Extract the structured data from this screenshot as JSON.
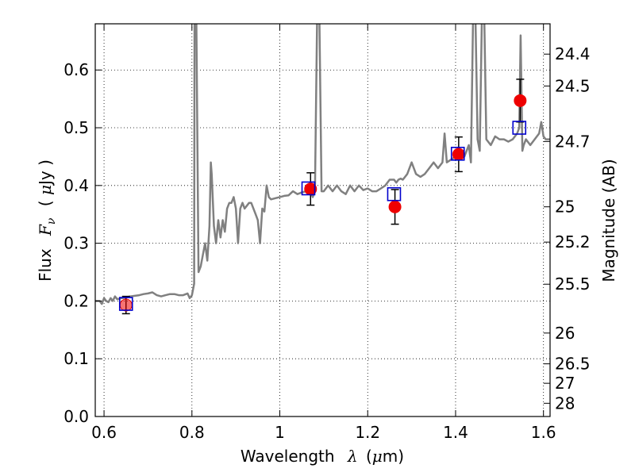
{
  "chart_data": {
    "type": "scatter",
    "xlabel_text": "Wavelength",
    "xlabel_symbol": "λ",
    "xlabel_unit_open": "(",
    "xlabel_unit_mu": "μ",
    "xlabel_unit_rest": "m)",
    "ylabel_text": "Flux",
    "ylabel_symbol": "F",
    "ylabel_subscript": "ν",
    "ylabel_unit_open": "(",
    "ylabel_unit_mu": "μ",
    "ylabel_unit_rest": "Jy )",
    "y2label": "Magnitude (AB)",
    "xlim": [
      0.58,
      1.615
    ],
    "ylim": [
      0.0,
      0.68
    ],
    "grid": true,
    "x_ticks": [
      {
        "value": 0.6,
        "label": "0.6"
      },
      {
        "value": 0.8,
        "label": "0.8"
      },
      {
        "value": 1.0,
        "label": "1"
      },
      {
        "value": 1.2,
        "label": "1.2"
      },
      {
        "value": 1.4,
        "label": "1.4"
      },
      {
        "value": 1.6,
        "label": "1.6"
      }
    ],
    "y_ticks": [
      {
        "value": 0.0,
        "label": "0.0"
      },
      {
        "value": 0.1,
        "label": "0.1"
      },
      {
        "value": 0.2,
        "label": "0.2"
      },
      {
        "value": 0.3,
        "label": "0.3"
      },
      {
        "value": 0.4,
        "label": "0.4"
      },
      {
        "value": 0.5,
        "label": "0.5"
      },
      {
        "value": 0.6,
        "label": "0.6"
      }
    ],
    "y2_ticks": [
      {
        "flux": 0.6275,
        "label": "24.4"
      },
      {
        "flux": 0.5723,
        "label": "24.5"
      },
      {
        "flux": 0.4762,
        "label": "24.7"
      },
      {
        "flux": 0.3631,
        "label": "25"
      },
      {
        "flux": 0.302,
        "label": "25.2"
      },
      {
        "flux": 0.2291,
        "label": "25.5"
      },
      {
        "flux": 0.1445,
        "label": "26"
      },
      {
        "flux": 0.0912,
        "label": "26.5"
      },
      {
        "flux": 0.0575,
        "label": "27"
      },
      {
        "flux": 0.0229,
        "label": "28"
      }
    ],
    "series": [
      {
        "kind": "line",
        "color": "#808080",
        "x": [
          0.58,
          0.59,
          0.595,
          0.6,
          0.605,
          0.61,
          0.615,
          0.62,
          0.625,
          0.63,
          0.64,
          0.65,
          0.66,
          0.67,
          0.68,
          0.69,
          0.7,
          0.71,
          0.72,
          0.73,
          0.74,
          0.75,
          0.76,
          0.77,
          0.78,
          0.79,
          0.795,
          0.8,
          0.805,
          0.806,
          0.808,
          0.81,
          0.815,
          0.82,
          0.825,
          0.83,
          0.835,
          0.84,
          0.843,
          0.845,
          0.85,
          0.855,
          0.86,
          0.865,
          0.87,
          0.875,
          0.88,
          0.885,
          0.89,
          0.895,
          0.9,
          0.905,
          0.91,
          0.915,
          0.92,
          0.925,
          0.93,
          0.935,
          0.94,
          0.945,
          0.95,
          0.955,
          0.96,
          0.965,
          0.97,
          0.975,
          0.98,
          0.99,
          1.0,
          1.01,
          1.02,
          1.03,
          1.04,
          1.05,
          1.06,
          1.07,
          1.075,
          1.08,
          1.085,
          1.09,
          1.095,
          1.1,
          1.11,
          1.12,
          1.13,
          1.14,
          1.15,
          1.16,
          1.17,
          1.18,
          1.19,
          1.2,
          1.21,
          1.22,
          1.23,
          1.24,
          1.25,
          1.26,
          1.265,
          1.27,
          1.275,
          1.28,
          1.29,
          1.3,
          1.31,
          1.32,
          1.33,
          1.34,
          1.35,
          1.36,
          1.37,
          1.375,
          1.38,
          1.39,
          1.4,
          1.41,
          1.42,
          1.43,
          1.435,
          1.44,
          1.445,
          1.45,
          1.455,
          1.46,
          1.465,
          1.47,
          1.48,
          1.49,
          1.5,
          1.51,
          1.52,
          1.53,
          1.54,
          1.545,
          1.548,
          1.552,
          1.555,
          1.56,
          1.57,
          1.58,
          1.59,
          1.595,
          1.6,
          1.605,
          1.615
        ],
        "y": [
          0.2,
          0.2,
          0.195,
          0.205,
          0.2,
          0.198,
          0.205,
          0.2,
          0.208,
          0.203,
          0.205,
          0.206,
          0.208,
          0.209,
          0.21,
          0.212,
          0.213,
          0.215,
          0.21,
          0.208,
          0.21,
          0.212,
          0.212,
          0.21,
          0.21,
          0.213,
          0.205,
          0.21,
          0.23,
          0.7,
          0.7,
          0.7,
          0.25,
          0.26,
          0.28,
          0.3,
          0.27,
          0.33,
          0.44,
          0.42,
          0.33,
          0.3,
          0.34,
          0.31,
          0.34,
          0.32,
          0.36,
          0.37,
          0.37,
          0.38,
          0.36,
          0.3,
          0.36,
          0.37,
          0.36,
          0.365,
          0.37,
          0.37,
          0.36,
          0.35,
          0.34,
          0.3,
          0.36,
          0.355,
          0.4,
          0.38,
          0.376,
          0.378,
          0.38,
          0.382,
          0.383,
          0.39,
          0.385,
          0.388,
          0.39,
          0.39,
          0.38,
          0.39,
          0.7,
          0.7,
          0.39,
          0.39,
          0.4,
          0.39,
          0.4,
          0.39,
          0.385,
          0.4,
          0.39,
          0.4,
          0.392,
          0.395,
          0.39,
          0.39,
          0.395,
          0.4,
          0.41,
          0.41,
          0.405,
          0.41,
          0.412,
          0.41,
          0.42,
          0.44,
          0.42,
          0.415,
          0.42,
          0.43,
          0.44,
          0.43,
          0.44,
          0.49,
          0.44,
          0.445,
          0.45,
          0.46,
          0.45,
          0.47,
          0.44,
          0.7,
          0.7,
          0.48,
          0.46,
          0.7,
          0.7,
          0.48,
          0.47,
          0.485,
          0.48,
          0.48,
          0.476,
          0.48,
          0.49,
          0.5,
          0.66,
          0.46,
          0.47,
          0.48,
          0.47,
          0.48,
          0.49,
          0.51,
          0.485,
          0.48,
          0.48
        ]
      },
      {
        "kind": "model_points",
        "marker": "square",
        "color": "#0000cc",
        "x": [
          0.65,
          1.065,
          1.26,
          1.405,
          1.545
        ],
        "y": [
          0.195,
          0.395,
          0.385,
          0.455,
          0.5
        ]
      },
      {
        "kind": "observed_points",
        "marker": "circle",
        "color": "#ee0000",
        "x": [
          0.65,
          1.07,
          1.262,
          1.407,
          1.547
        ],
        "y": [
          0.193,
          0.394,
          0.363,
          0.454,
          0.547
        ],
        "yerr": [
          0.015,
          0.028,
          0.03,
          0.03,
          0.037
        ]
      }
    ]
  }
}
